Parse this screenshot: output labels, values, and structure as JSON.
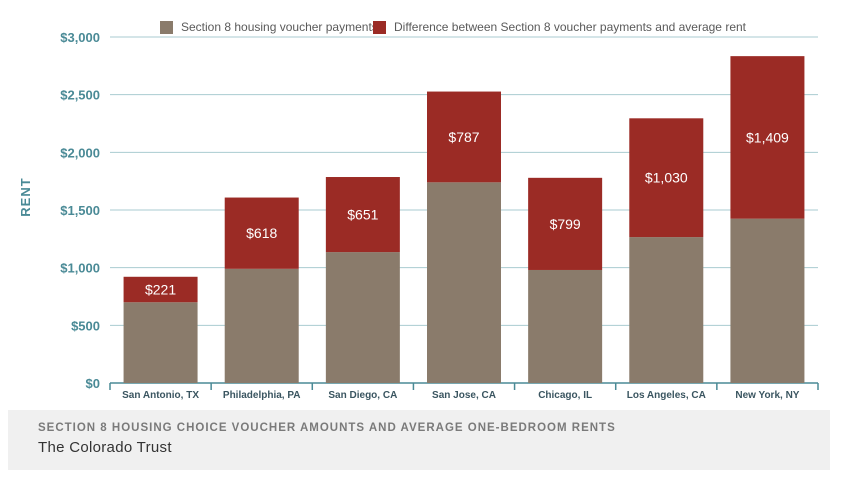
{
  "chart_data": {
    "type": "bar",
    "stacked": true,
    "categories": [
      "San Antonio, TX",
      "Philadelphia, PA",
      "San Diego, CA",
      "San Jose, CA",
      "Chicago, IL",
      "Los Angeles, CA",
      "New York, NY"
    ],
    "series": [
      {
        "name": "Section 8 housing voucher payments",
        "values": [
          700,
          990,
          1135,
          1740,
          980,
          1265,
          1425
        ],
        "color": "#8a7b6b"
      },
      {
        "name": "Difference between Section 8 voucher payments and average rent",
        "values": [
          221,
          618,
          651,
          787,
          799,
          1030,
          1409
        ],
        "labels": [
          "$221",
          "$618",
          "$651",
          "$787",
          "$799",
          "$1,030",
          "$1,409"
        ],
        "color": "#9b2b25"
      }
    ],
    "ylabel": "RENT",
    "ylim": [
      0,
      3000
    ],
    "yticks": [
      0,
      500,
      1000,
      1500,
      2000,
      2500,
      3000
    ],
    "ytick_labels": [
      "$0",
      "$500",
      "$1,000",
      "$1,500",
      "$2,000",
      "$2,500",
      "$3,000"
    ],
    "grid": true,
    "legend_position": "top-center",
    "axis_color": "#4a8a96"
  },
  "caption": {
    "title": "Section 8 Housing Choice Voucher Amounts and Average One-Bedroom Rents",
    "source": "The Colorado Trust"
  }
}
